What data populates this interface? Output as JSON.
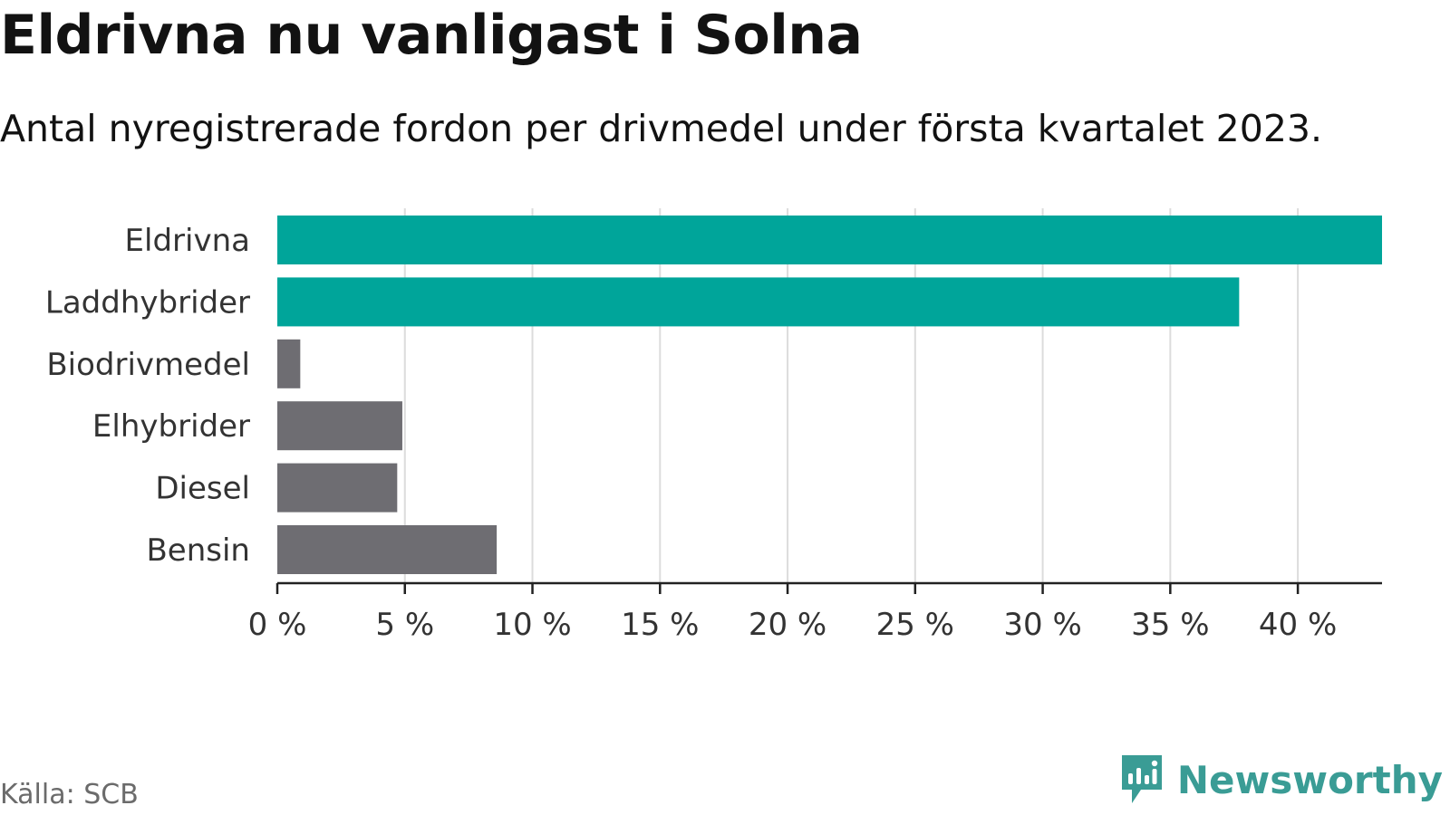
{
  "chart_data": {
    "type": "bar",
    "orientation": "horizontal",
    "title": "Eldrivna nu vanligast i Solna",
    "subtitle": "Antal nyregistrerade fordon per drivmedel under första kvartalet 2023.",
    "categories": [
      "Eldrivna",
      "Laddhybrider",
      "Biodrivmedel",
      "Elhybrider",
      "Diesel",
      "Bensin"
    ],
    "values": [
      43.3,
      37.7,
      0.9,
      4.9,
      4.7,
      8.6
    ],
    "bar_colors": [
      "#00a59a",
      "#00a59a",
      "#6e6d72",
      "#6e6d72",
      "#6e6d72",
      "#6e6d72"
    ],
    "xlim": [
      0,
      43.3
    ],
    "xticks": [
      0,
      5,
      10,
      15,
      20,
      25,
      30,
      35,
      40
    ],
    "xtick_labels": [
      "0 %",
      "5 %",
      "10 %",
      "15 %",
      "20 %",
      "25 %",
      "30 %",
      "35 %",
      "40 %"
    ],
    "xlabel": "",
    "ylabel": "",
    "grid": "vertical",
    "gridline_color": "#dcdcdc",
    "axis_color": "#222222"
  },
  "source": "Källa: SCB",
  "brand": {
    "name": "Newsworthy",
    "color": "#3a9c95",
    "icon": "newsworthy-logo-icon"
  }
}
